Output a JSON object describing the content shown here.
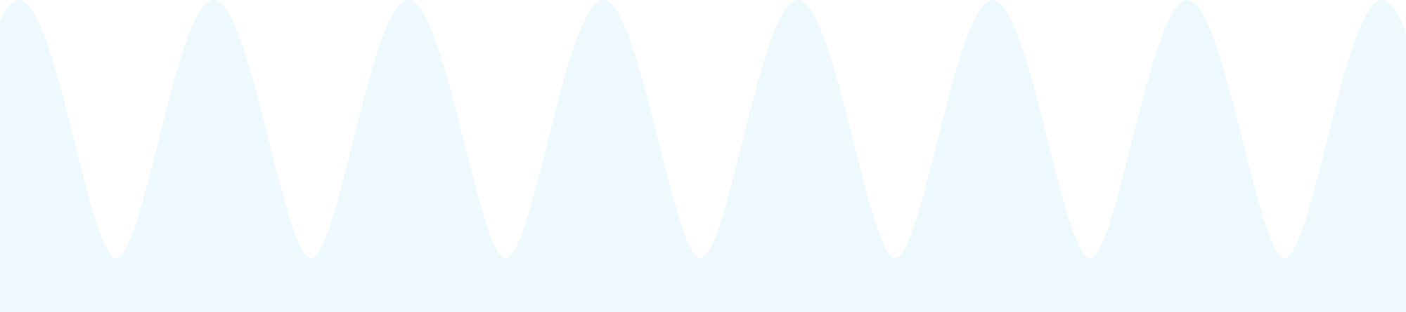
{
  "colors": {
    "background": "#ffffff",
    "wave_fill": "#eef9fd"
  }
}
